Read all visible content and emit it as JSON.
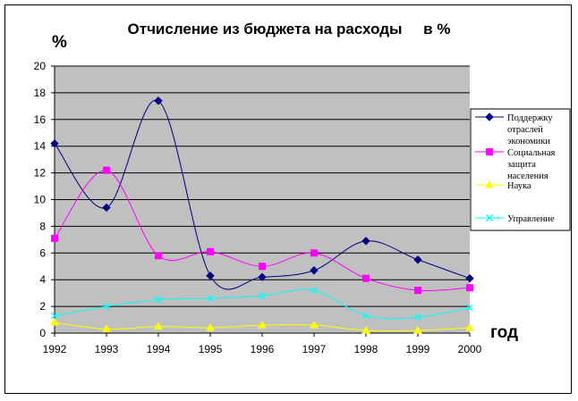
{
  "chart_data": {
    "type": "line",
    "title": "Отчисление из бюджета на расходы     в %",
    "ylabel": "%",
    "xlabel": "год",
    "x": [
      "1992",
      "1993",
      "1994",
      "1995",
      "1996",
      "1997",
      "1998",
      "1999",
      "2000"
    ],
    "y_ticks": [
      "0",
      "2",
      "4",
      "6",
      "8",
      "10",
      "12",
      "14",
      "16",
      "18",
      "20"
    ],
    "ylim": [
      0,
      20
    ],
    "grid": true,
    "legend_position": "right",
    "series": [
      {
        "name_lines": [
          "Поддержку",
          "отраслей",
          "экономики"
        ],
        "name": "Поддержку отраслей экономики",
        "marker": "diamond",
        "color": "#000080",
        "values": [
          14.2,
          9.4,
          17.4,
          4.3,
          4.2,
          4.7,
          6.9,
          5.5,
          4.1
        ]
      },
      {
        "name_lines": [
          "Социальная",
          "защита",
          "населения"
        ],
        "name": "Социальная защита населения",
        "marker": "square",
        "color": "#ff00ff",
        "values": [
          7.1,
          12.2,
          5.8,
          6.1,
          5.0,
          6.0,
          4.1,
          3.2,
          3.4
        ]
      },
      {
        "name_lines": [
          "Наука"
        ],
        "name": "Наука",
        "marker": "triangle",
        "color": "#ffff00",
        "values": [
          0.8,
          0.3,
          0.5,
          0.4,
          0.6,
          0.6,
          0.2,
          0.2,
          0.4
        ]
      },
      {
        "name_lines": [
          "Управление"
        ],
        "name": "Управление",
        "marker": "x",
        "color": "#00ffff",
        "values": [
          1.3,
          2.0,
          2.5,
          2.6,
          2.8,
          3.2,
          1.3,
          1.2,
          1.9
        ]
      }
    ],
    "plot_background": "#c0c0c0"
  }
}
